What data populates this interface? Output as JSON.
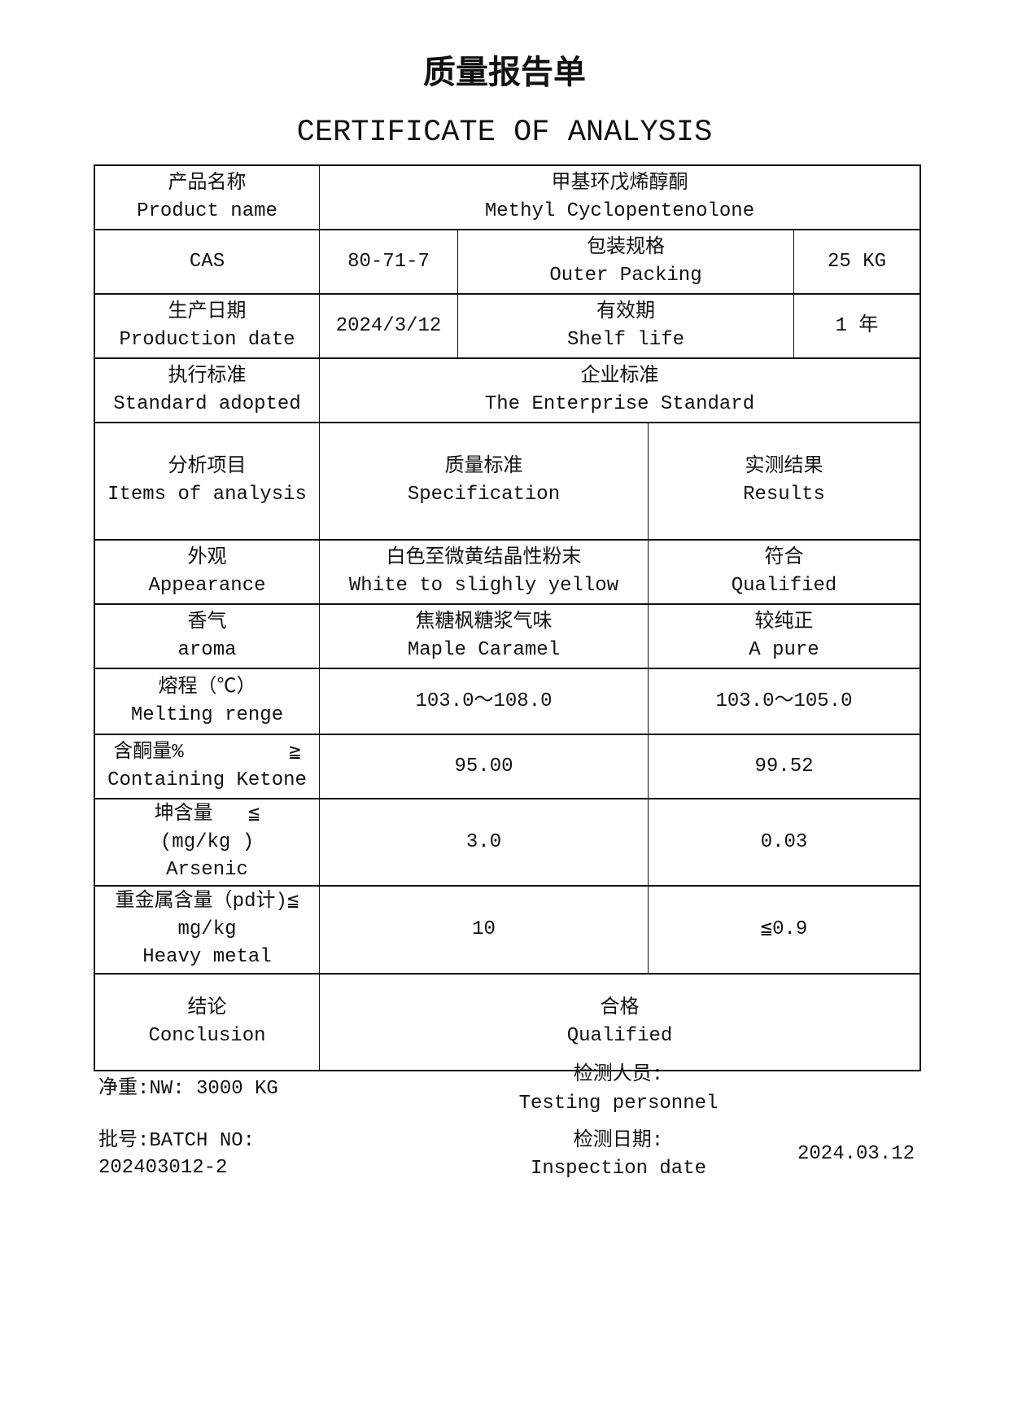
{
  "title": "质量报告单",
  "subtitle": "CERTIFICATE OF ANALYSIS",
  "info": {
    "product_name": {
      "label_cn": "产品名称",
      "label_en": "Product name",
      "value_cn": "甲基环戊烯醇酮",
      "value_en": "Methyl Cyclopentenolone"
    },
    "cas": {
      "label": "CAS",
      "value": "80-71-7"
    },
    "packing": {
      "label_cn": "包装规格",
      "label_en": "Outer Packing",
      "value": "25 KG"
    },
    "production_date": {
      "label_cn": "生产日期",
      "label_en": "Production date",
      "value": "2024/3/12"
    },
    "shelf_life": {
      "label_cn": "有效期",
      "label_en": "Shelf life",
      "value": "1 年"
    },
    "standard": {
      "label_cn": "执行标准",
      "label_en": "Standard adopted",
      "value_cn": "企业标准",
      "value_en": "The Enterprise Standard"
    }
  },
  "analysis_header": {
    "items": {
      "cn": "分析项目",
      "en": "Items of analysis"
    },
    "spec": {
      "cn": "质量标准",
      "en": "Specification"
    },
    "results": {
      "cn": "实测结果",
      "en": "Results"
    }
  },
  "analysis_rows": [
    {
      "item_lines": [
        "外观",
        "Appearance"
      ],
      "spec_lines": [
        "白色至微黄结晶性粉末",
        "White to slighly yellow"
      ],
      "result_lines": [
        "符合",
        "Qualified"
      ]
    },
    {
      "item_lines": [
        "香气",
        "aroma"
      ],
      "spec_lines": [
        "焦糖枫糖浆气味",
        "Maple Caramel"
      ],
      "result_lines": [
        "较纯正",
        "A pure"
      ]
    },
    {
      "item_lines": [
        "熔程（℃）",
        "Melting renge"
      ],
      "spec_lines": [
        "103.0～108.0"
      ],
      "result_lines": [
        "103.0～105.0"
      ]
    },
    {
      "item_lines": [
        "含酮量%         ≧",
        "Containing Ketone"
      ],
      "spec_lines": [
        "95.00"
      ],
      "result_lines": [
        "99.52"
      ]
    },
    {
      "item_lines": [
        "坤含量   ≦",
        "(mg/kg )",
        "Arsenic"
      ],
      "spec_lines": [
        "3.0"
      ],
      "result_lines": [
        "0.03"
      ]
    },
    {
      "item_lines": [
        "重金属含量（pd计)≦",
        "mg/kg",
        "Heavy metal"
      ],
      "spec_lines": [
        "10"
      ],
      "result_lines": [
        "≦0.9"
      ]
    }
  ],
  "conclusion": {
    "label_cn": "结论",
    "label_en": "Conclusion",
    "value_cn": "合格",
    "value_en": "Qualified"
  },
  "footer": {
    "net_weight": "净重:NW: 3000 KG",
    "batch_label": "批号:BATCH NO:",
    "batch_value": "202403012-2",
    "tester_cn": "检测人员:",
    "tester_en": "Testing personnel",
    "inspection_cn": "检测日期:",
    "inspection_en": "Inspection date",
    "inspection_value": "2024.03.12"
  }
}
